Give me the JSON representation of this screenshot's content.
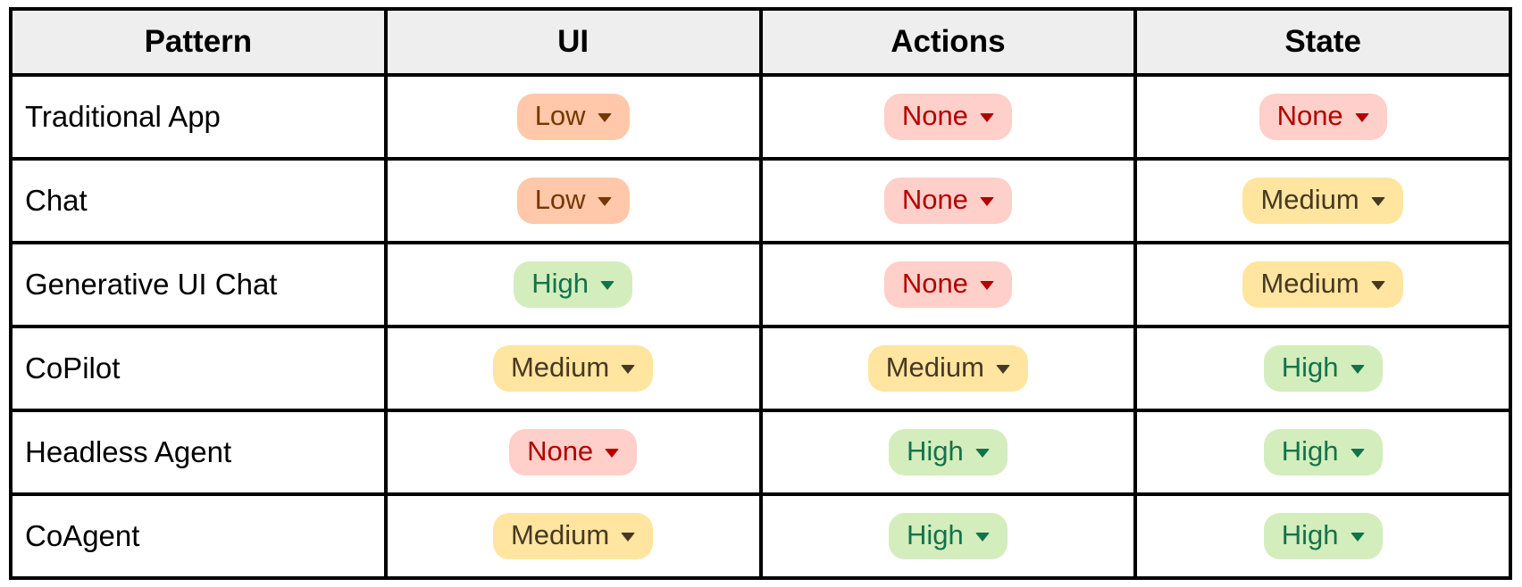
{
  "colors": {
    "border": "#000000",
    "header_bg": "#eeeeee",
    "chip_low": {
      "bg": "#FFC8AA",
      "text": "#753800"
    },
    "chip_none": {
      "bg": "#FFCFC9",
      "text": "#B10202"
    },
    "chip_medium": {
      "bg": "#FFE5A0",
      "text": "#473821"
    },
    "chip_high": {
      "bg": "#D4EDBC",
      "text": "#11734B"
    }
  },
  "table": {
    "headers": [
      "Pattern",
      "UI",
      "Actions",
      "State"
    ],
    "rows": [
      {
        "pattern": "Traditional App",
        "cells": [
          {
            "label": "Low",
            "level": "low"
          },
          {
            "label": "None",
            "level": "none"
          },
          {
            "label": "None",
            "level": "none"
          }
        ]
      },
      {
        "pattern": "Chat",
        "cells": [
          {
            "label": "Low",
            "level": "low"
          },
          {
            "label": "None",
            "level": "none"
          },
          {
            "label": "Medium",
            "level": "medium"
          }
        ]
      },
      {
        "pattern": "Generative UI Chat",
        "cells": [
          {
            "label": "High",
            "level": "high"
          },
          {
            "label": "None",
            "level": "none"
          },
          {
            "label": "Medium",
            "level": "medium"
          }
        ]
      },
      {
        "pattern": "CoPilot",
        "cells": [
          {
            "label": "Medium",
            "level": "medium"
          },
          {
            "label": "Medium",
            "level": "medium"
          },
          {
            "label": "High",
            "level": "high"
          }
        ]
      },
      {
        "pattern": "Headless Agent",
        "cells": [
          {
            "label": "None",
            "level": "none"
          },
          {
            "label": "High",
            "level": "high"
          },
          {
            "label": "High",
            "level": "high"
          }
        ]
      },
      {
        "pattern": "CoAgent",
        "cells": [
          {
            "label": "Medium",
            "level": "medium"
          },
          {
            "label": "High",
            "level": "high"
          },
          {
            "label": "High",
            "level": "high"
          }
        ]
      }
    ]
  }
}
